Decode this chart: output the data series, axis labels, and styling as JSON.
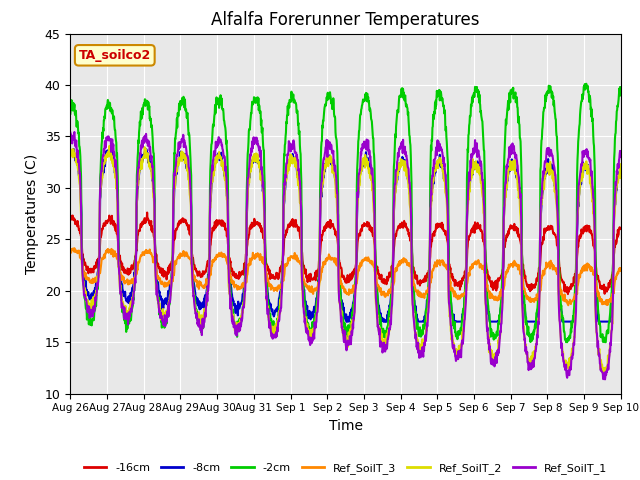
{
  "title": "Alfalfa Forerunner Temperatures",
  "xlabel": "Time",
  "ylabel": "Temperatures (C)",
  "ylim": [
    10,
    45
  ],
  "annotation_text": "TA_soilco2",
  "annotation_color": "#cc0000",
  "annotation_bg": "#ffffcc",
  "annotation_border": "#cc8800",
  "background_color": "#e8e8e8",
  "series": {
    "-16cm": {
      "color": "#dd0000",
      "lw": 1.5
    },
    "-8cm": {
      "color": "#0000cc",
      "lw": 1.5
    },
    "-2cm": {
      "color": "#00cc00",
      "lw": 1.5
    },
    "Ref_SoilT_3": {
      "color": "#ff8800",
      "lw": 1.5
    },
    "Ref_SoilT_2": {
      "color": "#dddd00",
      "lw": 1.5
    },
    "Ref_SoilT_1": {
      "color": "#9900cc",
      "lw": 1.5
    }
  },
  "legend_labels": [
    "-16cm",
    "-8cm",
    "-2cm",
    "Ref_SoilT_3",
    "Ref_SoilT_2",
    "Ref_SoilT_1"
  ],
  "xtick_labels": [
    "Aug 26",
    "Aug 27",
    "Aug 28",
    "Aug 29",
    "Aug 30",
    "Aug 31",
    "Sep 1",
    "Sep 2",
    "Sep 3",
    "Sep 4",
    "Sep 5",
    "Sep 6",
    "Sep 7",
    "Sep 8",
    "Sep 9",
    "Sep 10"
  ],
  "grid_color": "#ffffff",
  "n_points": 1500
}
